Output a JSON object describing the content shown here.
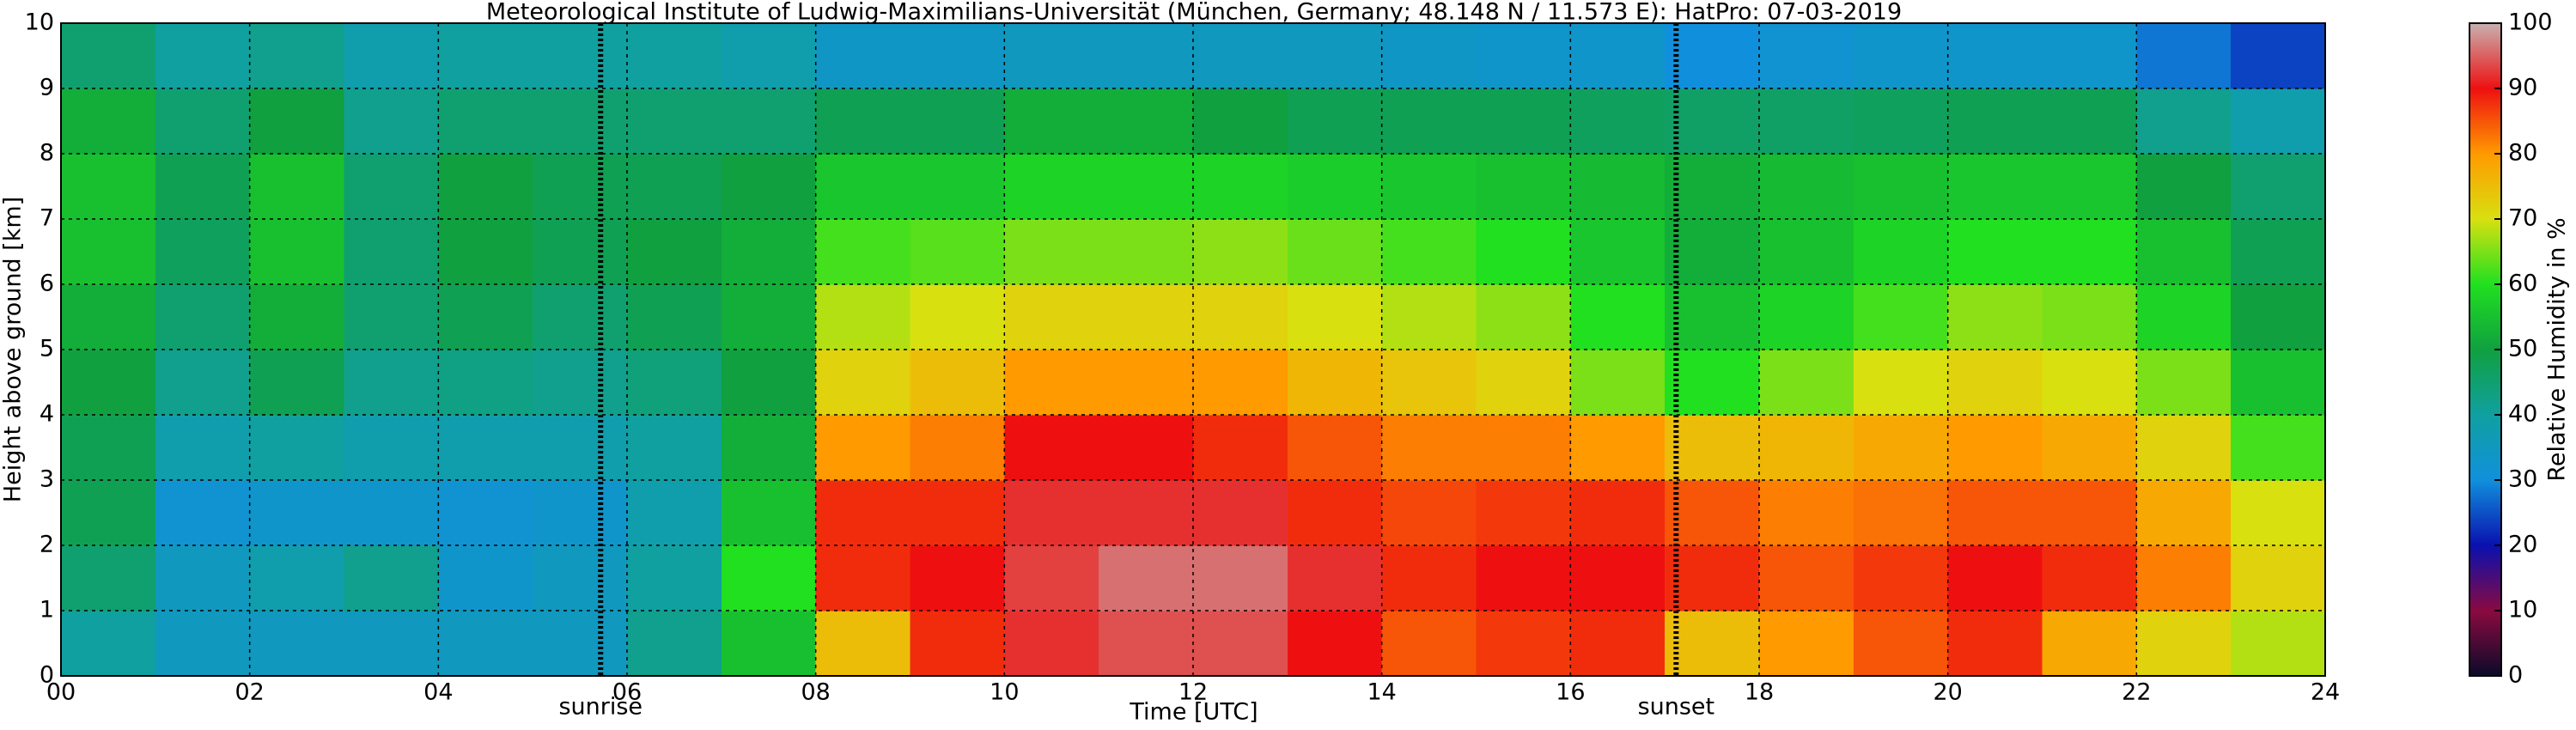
{
  "chart_data": {
    "type": "heatmap",
    "title": "Meteorological Institute of Ludwig-Maximilians-Universität (München, Germany; 48.148 N / 11.573 E):    HatPro: 07-03-2019",
    "x_label": "Time [UTC]",
    "y_label": "Height above ground [km]",
    "x": [
      0.5,
      1.5,
      2.5,
      3.5,
      4.5,
      5.5,
      6.5,
      7.5,
      8.5,
      9.5,
      10.5,
      11.5,
      12.5,
      13.5,
      14.5,
      15.5,
      16.5,
      17.5,
      18.5,
      19.5,
      20.5,
      21.5,
      22.5,
      23.5
    ],
    "y": [
      0.5,
      1.5,
      2.5,
      3.5,
      4.5,
      5.5,
      6.5,
      7.5,
      8.5,
      9.5
    ],
    "values": [
      [
        40,
        35,
        35,
        35,
        35,
        35,
        42,
        55,
        75,
        88,
        92,
        94,
        94,
        90,
        85,
        87,
        88,
        75,
        80,
        85,
        88,
        78,
        72,
        68
      ],
      [
        45,
        35,
        38,
        42,
        33,
        35,
        40,
        60,
        88,
        90,
        93,
        96,
        96,
        92,
        88,
        90,
        90,
        88,
        85,
        87,
        90,
        88,
        82,
        72
      ],
      [
        48,
        32,
        33,
        33,
        32,
        33,
        38,
        55,
        88,
        88,
        92,
        92,
        92,
        88,
        86,
        87,
        88,
        85,
        82,
        83,
        85,
        85,
        78,
        70
      ],
      [
        48,
        38,
        40,
        38,
        38,
        38,
        40,
        52,
        80,
        82,
        90,
        90,
        88,
        85,
        82,
        82,
        80,
        75,
        76,
        78,
        80,
        78,
        72,
        62
      ],
      [
        50,
        42,
        48,
        42,
        43,
        42,
        44,
        50,
        72,
        75,
        80,
        80,
        80,
        76,
        74,
        72,
        65,
        60,
        65,
        70,
        72,
        70,
        65,
        55
      ],
      [
        52,
        45,
        52,
        45,
        48,
        45,
        48,
        52,
        68,
        70,
        72,
        72,
        72,
        70,
        68,
        66,
        60,
        55,
        58,
        62,
        66,
        65,
        58,
        50
      ],
      [
        55,
        47,
        55,
        45,
        50,
        48,
        50,
        52,
        62,
        63,
        65,
        65,
        66,
        64,
        62,
        60,
        56,
        52,
        55,
        58,
        60,
        60,
        55,
        48
      ],
      [
        55,
        48,
        55,
        45,
        50,
        48,
        48,
        50,
        56,
        56,
        58,
        58,
        58,
        57,
        56,
        55,
        54,
        52,
        54,
        55,
        56,
        56,
        50,
        45
      ],
      [
        52,
        45,
        50,
        42,
        45,
        45,
        45,
        45,
        48,
        48,
        52,
        52,
        50,
        48,
        48,
        48,
        47,
        46,
        46,
        47,
        48,
        48,
        42,
        38
      ],
      [
        45,
        40,
        42,
        38,
        40,
        40,
        40,
        38,
        34,
        34,
        35,
        35,
        35,
        35,
        34,
        33,
        33,
        30,
        32,
        33,
        33,
        33,
        28,
        24
      ]
    ],
    "xlim": [
      0,
      24
    ],
    "xticks": [
      {
        "value": 0,
        "label": "00"
      },
      {
        "value": 2,
        "label": "02"
      },
      {
        "value": 4,
        "label": "04"
      },
      {
        "value": 6,
        "label": "06"
      },
      {
        "value": 8,
        "label": "08"
      },
      {
        "value": 10,
        "label": "10"
      },
      {
        "value": 12,
        "label": "12"
      },
      {
        "value": 14,
        "label": "14"
      },
      {
        "value": 16,
        "label": "16"
      },
      {
        "value": 18,
        "label": "18"
      },
      {
        "value": 20,
        "label": "20"
      },
      {
        "value": 22,
        "label": "22"
      },
      {
        "value": 24,
        "label": "24"
      }
    ],
    "ylim": [
      0,
      10
    ],
    "yticks": [
      0,
      1,
      2,
      3,
      4,
      5,
      6,
      7,
      8,
      9,
      10
    ],
    "grid": true,
    "annotations": [
      {
        "text": "sunrise",
        "x": 5.72
      },
      {
        "text": "sunset",
        "x": 17.12
      }
    ],
    "colorbar": {
      "label": "Relative Humidity in %",
      "ticks": [
        0,
        10,
        20,
        30,
        40,
        50,
        60,
        70,
        80,
        90,
        100
      ],
      "colors": [
        "#0a0a2a",
        "#8a0a40",
        "#0a10b0",
        "#1090dc",
        "#10a0a0",
        "#10a040",
        "#20e020",
        "#d8e010",
        "#ff9a00",
        "#ee1010",
        "#c8b0b0"
      ]
    }
  }
}
